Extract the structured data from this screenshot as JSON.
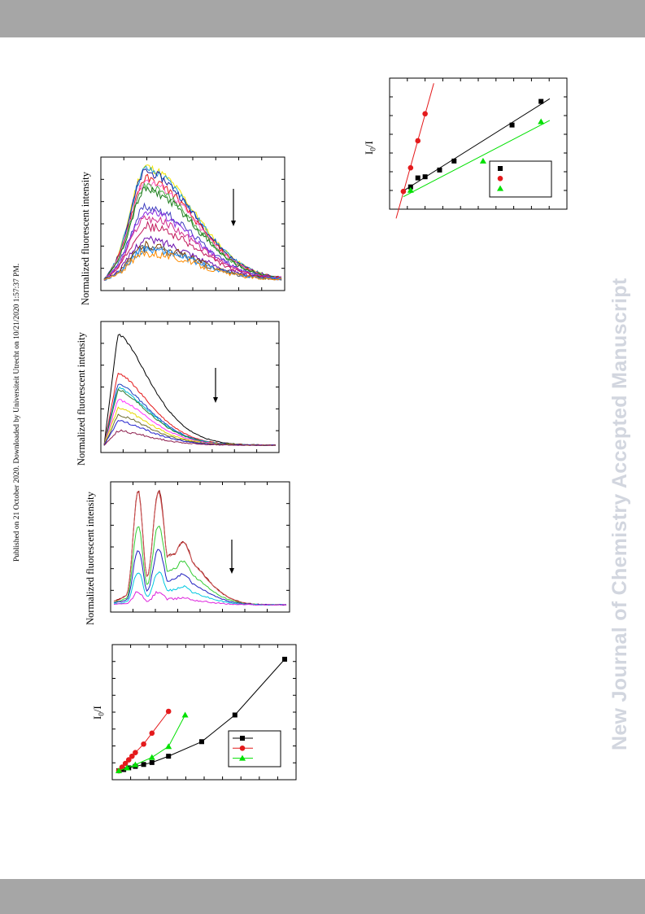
{
  "header": {
    "publication_note": "Published on 21 October 2020. Downloaded by Universiteit Utrecht on 10/21/2020 1:57:37 PM."
  },
  "watermark": "New Journal of Chemistry Accepted Manuscript",
  "colors": {
    "band": "#a6a6a6",
    "watermark": "#d2d6df"
  },
  "chart_data": [
    {
      "id": "spectrum-1",
      "type": "line",
      "ylabel": "Normalized fluorescent intensity",
      "arrow": "down",
      "series": [
        {
          "color": "#f2e600",
          "peak": 0.98
        },
        {
          "color": "#1a9ad6",
          "peak": 0.96
        },
        {
          "color": "#2020a0",
          "peak": 0.94
        },
        {
          "color": "#e41a1c",
          "peak": 0.88
        },
        {
          "color": "#ff66cc",
          "peak": 0.86
        },
        {
          "color": "#4daf4a",
          "peak": 0.82
        },
        {
          "color": "#1b7a1b",
          "peak": 0.79
        },
        {
          "color": "#3f3fbf",
          "peak": 0.65
        },
        {
          "color": "#8a2be2",
          "peak": 0.61
        },
        {
          "color": "#d22e8c",
          "peak": 0.56
        },
        {
          "color": "#c2185b",
          "peak": 0.49
        },
        {
          "color": "#6a0dad",
          "peak": 0.38
        },
        {
          "color": "#7b3f00",
          "peak": 0.33
        },
        {
          "color": "#555555",
          "peak": 0.31
        },
        {
          "color": "#1e90ff",
          "peak": 0.3
        },
        {
          "color": "#ff8c00",
          "peak": 0.27
        }
      ]
    },
    {
      "id": "spectrum-2",
      "type": "line",
      "ylabel": "Normalized fluorescent intensity",
      "arrow": "down",
      "series": [
        {
          "color": "#000000",
          "peak": 0.95
        },
        {
          "color": "#e41a1c",
          "peak": 0.62
        },
        {
          "color": "#1f3fbf",
          "peak": 0.53
        },
        {
          "color": "#00bcd4",
          "peak": 0.5
        },
        {
          "color": "#2e7d32",
          "peak": 0.48
        },
        {
          "color": "#ff33ff",
          "peak": 0.4
        },
        {
          "color": "#e6d800",
          "peak": 0.33
        },
        {
          "color": "#6b6b2e",
          "peak": 0.27
        },
        {
          "color": "#2222cc",
          "peak": 0.22
        },
        {
          "color": "#8b1a4a",
          "peak": 0.14
        }
      ]
    },
    {
      "id": "spectrum-3",
      "type": "line",
      "ylabel": "Normalized fluorescent intensity",
      "arrow": "down",
      "series": [
        {
          "color": "#8b0000",
          "peak": 0.98
        },
        {
          "color": "#cc5555",
          "peak": 0.97
        },
        {
          "color": "#33cc33",
          "peak": 0.69
        },
        {
          "color": "#1f1fbf",
          "peak": 0.49
        },
        {
          "color": "#00c8e0",
          "peak": 0.3
        },
        {
          "color": "#dd22dd",
          "peak": 0.13
        }
      ]
    },
    {
      "id": "stern-volmer-1",
      "type": "scatter",
      "ylabel": "I0/I",
      "legend": "bottom-right",
      "series": [
        {
          "color": "#000000",
          "marker": "square",
          "points": [
            [
              0,
              1.0
            ],
            [
              0.03,
              1.05
            ],
            [
              0.06,
              1.12
            ],
            [
              0.1,
              1.18
            ],
            [
              0.15,
              1.26
            ],
            [
              0.2,
              1.34
            ],
            [
              0.3,
              1.6
            ],
            [
              0.5,
              2.2
            ],
            [
              0.7,
              3.3
            ],
            [
              1.0,
              5.6
            ]
          ]
        },
        {
          "color": "#e41a1c",
          "marker": "circle",
          "points": [
            [
              0,
              1.0
            ],
            [
              0.02,
              1.15
            ],
            [
              0.04,
              1.3
            ],
            [
              0.06,
              1.45
            ],
            [
              0.08,
              1.6
            ],
            [
              0.1,
              1.75
            ],
            [
              0.15,
              2.1
            ],
            [
              0.2,
              2.55
            ],
            [
              0.3,
              3.45
            ]
          ]
        },
        {
          "color": "#00e000",
          "marker": "triangle",
          "points": [
            [
              0,
              1.0
            ],
            [
              0.05,
              1.12
            ],
            [
              0.1,
              1.25
            ],
            [
              0.2,
              1.55
            ],
            [
              0.3,
              2.0
            ],
            [
              0.4,
              3.3
            ]
          ]
        }
      ]
    },
    {
      "id": "stern-volmer-2",
      "type": "scatter",
      "ylabel": "I0/I",
      "legend": "bottom-right",
      "series": [
        {
          "color": "#000000",
          "marker": "square",
          "points": [
            [
              0.1,
              1.2
            ],
            [
              0.15,
              1.6
            ],
            [
              0.2,
              1.65
            ],
            [
              0.3,
              1.95
            ],
            [
              0.4,
              2.35
            ],
            [
              0.8,
              3.95
            ],
            [
              1.0,
              5.0
            ]
          ]
        },
        {
          "color": "#e41a1c",
          "marker": "circle",
          "points": [
            [
              0.05,
              1.0
            ],
            [
              0.1,
              2.05
            ],
            [
              0.15,
              3.25
            ],
            [
              0.2,
              4.45
            ]
          ]
        },
        {
          "color": "#00e000",
          "marker": "triangle",
          "points": [
            [
              0.1,
              1.05
            ],
            [
              0.6,
              2.35
            ],
            [
              1.0,
              4.1
            ]
          ]
        }
      ]
    }
  ]
}
